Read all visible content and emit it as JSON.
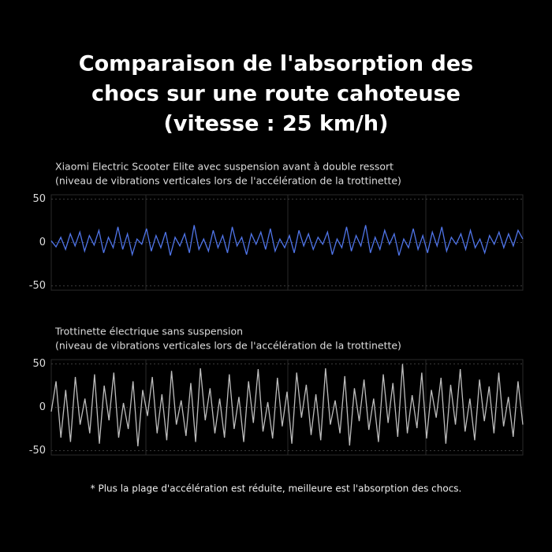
{
  "title": [
    "Comparaison de l'absorption des",
    "chocs sur une route cahoteuse",
    "(vitesse : 25 km/h)"
  ],
  "footnote": "* Plus la plage d'accélération est réduite, meilleure est l'absorption des chocs.",
  "chart_data": [
    {
      "type": "line",
      "subtitle": [
        "Xiaomi Electric Scooter Elite avec suspension avant à double ressort",
        "(niveau de vibrations verticales lors de l'accélération de la trottinette)"
      ],
      "values": [
        2,
        -5,
        6,
        -8,
        10,
        -4,
        12,
        -10,
        8,
        -3,
        14,
        -12,
        6,
        -6,
        18,
        -8,
        10,
        -14,
        4,
        -2,
        16,
        -10,
        8,
        -6,
        12,
        -15,
        6,
        -4,
        10,
        -12,
        20,
        -8,
        4,
        -10,
        14,
        -6,
        8,
        -12,
        18,
        -4,
        6,
        -14,
        10,
        -2,
        12,
        -8,
        16,
        -10,
        4,
        -6,
        8,
        -12,
        14,
        -4,
        10,
        -8,
        6,
        -2,
        12,
        -14,
        4,
        -6,
        18,
        -10,
        8,
        -4,
        20,
        -12,
        6,
        -8,
        14,
        -2,
        10,
        -15,
        4,
        -6,
        16,
        -8,
        8,
        -12,
        12,
        -4,
        18,
        -10,
        6,
        -2,
        10,
        -8,
        14,
        -6,
        4,
        -12,
        8,
        -2,
        12,
        -6,
        10,
        -4,
        14,
        4
      ],
      "color": "#4f74e8",
      "ylim": [
        -55,
        55
      ],
      "yticks": [
        50,
        0,
        -50
      ],
      "grid": true
    },
    {
      "type": "line",
      "subtitle": [
        "Trottinette électrique sans suspension",
        "(niveau de vibrations verticales lors de l'accélération de la trottinette)"
      ],
      "values": [
        -5,
        30,
        -35,
        20,
        -40,
        35,
        -20,
        10,
        -30,
        38,
        -42,
        25,
        -15,
        40,
        -35,
        5,
        -25,
        30,
        -45,
        20,
        -10,
        35,
        -30,
        15,
        -38,
        42,
        -20,
        8,
        -33,
        28,
        -40,
        45,
        -15,
        22,
        -30,
        10,
        -35,
        38,
        -25,
        12,
        -40,
        30,
        -18,
        44,
        -28,
        6,
        -36,
        34,
        -22,
        18,
        -42,
        40,
        -12,
        26,
        -32,
        15,
        -38,
        45,
        -20,
        8,
        -30,
        36,
        -44,
        22,
        -16,
        32,
        -26,
        10,
        -40,
        38,
        -18,
        28,
        -34,
        50,
        -30,
        14,
        -24,
        40,
        -36,
        20,
        -12,
        34,
        -42,
        26,
        -20,
        44,
        -28,
        10,
        -38,
        32,
        -16,
        24,
        -30,
        40,
        -22,
        12,
        -34,
        30,
        -20
      ],
      "color": "#bdbdbd",
      "ylim": [
        -55,
        55
      ],
      "yticks": [
        50,
        0,
        -50
      ],
      "grid": true
    }
  ]
}
